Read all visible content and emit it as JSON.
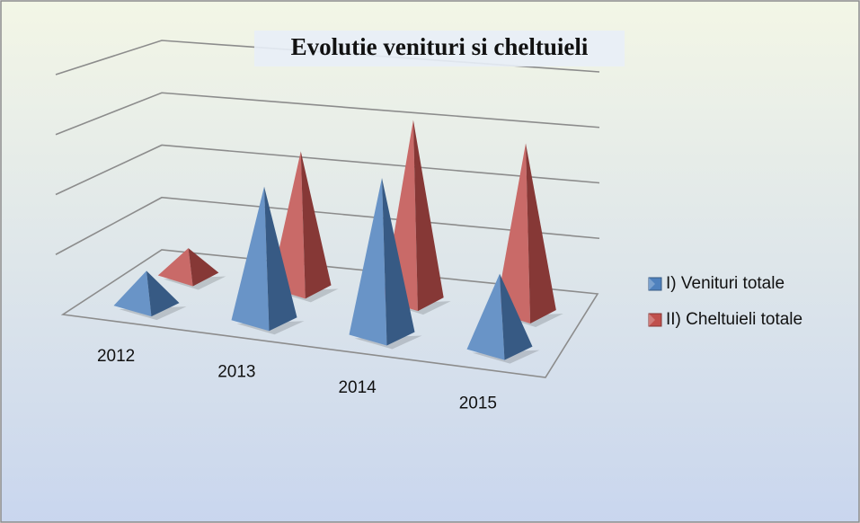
{
  "chart_data": {
    "type": "pyramid3d",
    "title": "Evolutie venituri si cheltuieli",
    "categories": [
      "2012",
      "2013",
      "2014",
      "2015"
    ],
    "series": [
      {
        "name": "I) Venituri totale",
        "color": "#4f81bd",
        "values": [
          0.6,
          2.3,
          2.7,
          1.3
        ]
      },
      {
        "name": "II) Cheltuieli totale",
        "color": "#c0504d",
        "values": [
          0.5,
          2.5,
          3.3,
          3.1
        ]
      }
    ],
    "ylim": [
      0,
      4
    ],
    "yticks": [
      0,
      1,
      2,
      3,
      4
    ],
    "grid": true,
    "legend": "right"
  }
}
